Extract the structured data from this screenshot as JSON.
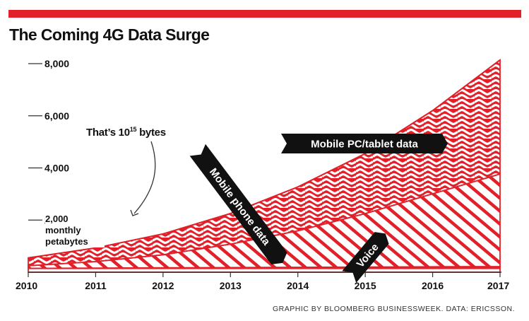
{
  "colors": {
    "accent": "#e2202a",
    "banner": "#111111",
    "axis": "#333333"
  },
  "title": "The Coming 4G Data Surge",
  "annotation": {
    "text": "That’s 10",
    "superscript": "15",
    "suffix": " bytes",
    "unit_line1": "2,000 monthly",
    "unit_line2": "petabytes"
  },
  "credit": "GRAPHIC BY BLOOMBERG BUSINESSWEEK. DATA: ERICSSON.",
  "chart_data": {
    "type": "area",
    "stacked": true,
    "title": "The Coming 4G Data Surge",
    "x": [
      2010,
      2011,
      2012,
      2013,
      2014,
      2015,
      2016,
      2017
    ],
    "xlim": [
      2010,
      2017
    ],
    "ylim": [
      0,
      8000
    ],
    "yticks": [
      2000,
      4000,
      6000,
      8000
    ],
    "ytick_labels": [
      "2,000",
      "4,000",
      "6,000",
      "8,000"
    ],
    "xtick_labels": [
      "2010",
      "2011",
      "2012",
      "2013",
      "2014",
      "2015",
      "2016",
      "2017"
    ],
    "series": [
      {
        "name": "Voice",
        "values": [
          150,
          160,
          170,
          180,
          190,
          200,
          210,
          220
        ],
        "pattern": "horizontal-lines"
      },
      {
        "name": "Mobile phone data",
        "values": [
          100,
          250,
          500,
          900,
          1400,
          2050,
          2800,
          3550
        ],
        "pattern": "diagonal-stripes"
      },
      {
        "name": "Mobile PC/tablet data",
        "values": [
          300,
          520,
          800,
          1170,
          1680,
          2300,
          3190,
          4370
        ],
        "pattern": "waves"
      }
    ],
    "grid": false
  }
}
